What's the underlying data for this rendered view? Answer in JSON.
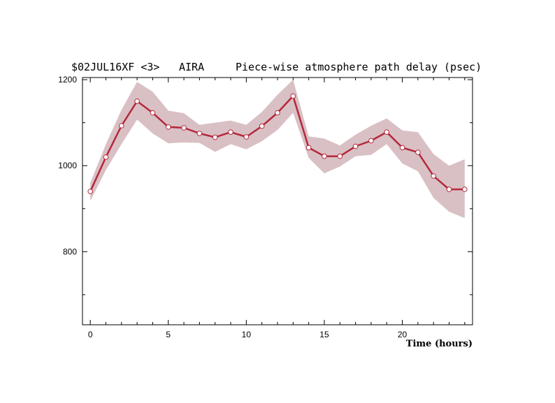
{
  "colors": {
    "line": "#b4283c",
    "band": "#d9c0c4",
    "marker_fill": "#ffffff",
    "axis": "#000000"
  },
  "header": {
    "source": "$02JUL16XF <3>",
    "station": "AIRA",
    "title": "Piece-wise atmosphere path delay (psec)"
  },
  "chart_data": {
    "type": "line",
    "title": "Piece-wise atmosphere path delay (psec)",
    "xlabel": "Time (hours)",
    "ylabel": "",
    "xlim": [
      -0.5,
      24.5
    ],
    "ylim": [
      630,
      1205
    ],
    "x_ticks": [
      0,
      5,
      10,
      15,
      20
    ],
    "y_ticks": [
      800,
      1000,
      1200
    ],
    "grid": false,
    "series": [
      {
        "x": [
          0,
          1,
          2,
          3,
          4,
          5,
          6,
          7,
          8,
          9,
          10,
          11,
          12,
          13,
          14,
          15,
          16,
          17,
          18,
          19,
          20,
          21,
          22,
          23,
          24
        ],
        "values": [
          940,
          1020,
          1093,
          1150,
          1123,
          1090,
          1088,
          1075,
          1066,
          1078,
          1067,
          1092,
          1123,
          1162,
          1042,
          1022,
          1022,
          1045,
          1058,
          1078,
          1042,
          1031,
          976,
          945,
          945
        ],
        "upper": [
          960,
          1050,
          1130,
          1195,
          1172,
          1128,
          1122,
          1095,
          1100,
          1105,
          1095,
          1125,
          1165,
          1200,
          1068,
          1063,
          1047,
          1072,
          1093,
          1110,
          1082,
          1078,
          1027,
          1000,
          1015
        ],
        "lower": [
          918,
          990,
          1050,
          1107,
          1075,
          1052,
          1054,
          1053,
          1032,
          1050,
          1038,
          1057,
          1083,
          1123,
          1018,
          982,
          998,
          1022,
          1025,
          1050,
          1005,
          987,
          925,
          893,
          878
        ]
      }
    ]
  }
}
